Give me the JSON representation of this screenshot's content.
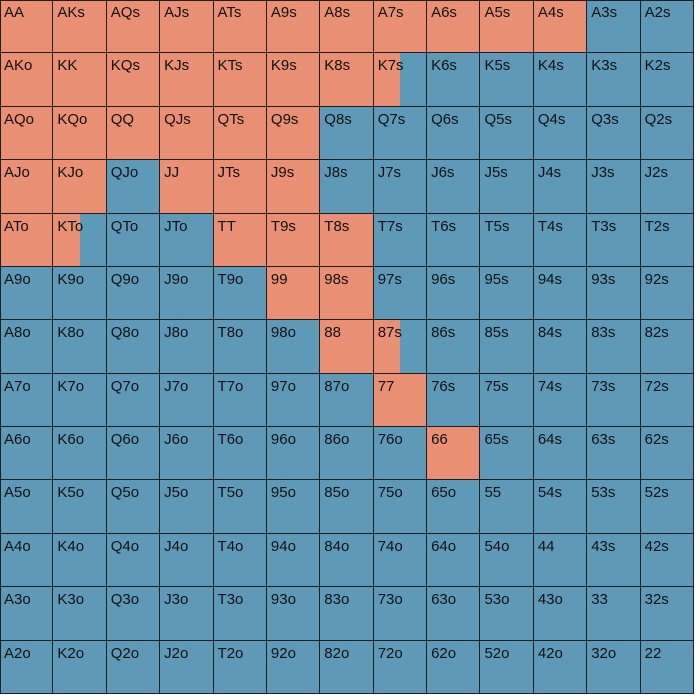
{
  "colors": {
    "raise": "#e88f74",
    "fold": "#5f99b8",
    "grid_line": "#1e1e1e",
    "text": "#111111"
  },
  "ranks": [
    "A",
    "K",
    "Q",
    "J",
    "T",
    "9",
    "8",
    "7",
    "6",
    "5",
    "4",
    "3",
    "2"
  ],
  "rows": [
    {
      "cells": [
        {
          "hand": "AA",
          "raise": 1
        },
        {
          "hand": "AKs",
          "raise": 1
        },
        {
          "hand": "AQs",
          "raise": 1
        },
        {
          "hand": "AJs",
          "raise": 1
        },
        {
          "hand": "ATs",
          "raise": 1
        },
        {
          "hand": "A9s",
          "raise": 1
        },
        {
          "hand": "A8s",
          "raise": 1
        },
        {
          "hand": "A7s",
          "raise": 1
        },
        {
          "hand": "A6s",
          "raise": 1
        },
        {
          "hand": "A5s",
          "raise": 1
        },
        {
          "hand": "A4s",
          "raise": 1
        },
        {
          "hand": "A3s",
          "raise": 0
        },
        {
          "hand": "A2s",
          "raise": 0
        }
      ]
    },
    {
      "cells": [
        {
          "hand": "AKo",
          "raise": 1
        },
        {
          "hand": "KK",
          "raise": 1
        },
        {
          "hand": "KQs",
          "raise": 1
        },
        {
          "hand": "KJs",
          "raise": 1
        },
        {
          "hand": "KTs",
          "raise": 1
        },
        {
          "hand": "K9s",
          "raise": 1
        },
        {
          "hand": "K8s",
          "raise": 1
        },
        {
          "hand": "K7s",
          "raise": 0.5
        },
        {
          "hand": "K6s",
          "raise": 0
        },
        {
          "hand": "K5s",
          "raise": 0
        },
        {
          "hand": "K4s",
          "raise": 0
        },
        {
          "hand": "K3s",
          "raise": 0
        },
        {
          "hand": "K2s",
          "raise": 0
        }
      ]
    },
    {
      "cells": [
        {
          "hand": "AQo",
          "raise": 1
        },
        {
          "hand": "KQo",
          "raise": 1
        },
        {
          "hand": "QQ",
          "raise": 1
        },
        {
          "hand": "QJs",
          "raise": 1
        },
        {
          "hand": "QTs",
          "raise": 1
        },
        {
          "hand": "Q9s",
          "raise": 1
        },
        {
          "hand": "Q8s",
          "raise": 0
        },
        {
          "hand": "Q7s",
          "raise": 0
        },
        {
          "hand": "Q6s",
          "raise": 0
        },
        {
          "hand": "Q5s",
          "raise": 0
        },
        {
          "hand": "Q4s",
          "raise": 0
        },
        {
          "hand": "Q3s",
          "raise": 0
        },
        {
          "hand": "Q2s",
          "raise": 0
        }
      ]
    },
    {
      "cells": [
        {
          "hand": "AJo",
          "raise": 1
        },
        {
          "hand": "KJo",
          "raise": 1
        },
        {
          "hand": "QJo",
          "raise": 0
        },
        {
          "hand": "JJ",
          "raise": 1
        },
        {
          "hand": "JTs",
          "raise": 1
        },
        {
          "hand": "J9s",
          "raise": 1
        },
        {
          "hand": "J8s",
          "raise": 0
        },
        {
          "hand": "J7s",
          "raise": 0
        },
        {
          "hand": "J6s",
          "raise": 0
        },
        {
          "hand": "J5s",
          "raise": 0
        },
        {
          "hand": "J4s",
          "raise": 0
        },
        {
          "hand": "J3s",
          "raise": 0
        },
        {
          "hand": "J2s",
          "raise": 0
        }
      ]
    },
    {
      "cells": [
        {
          "hand": "ATo",
          "raise": 1
        },
        {
          "hand": "KTo",
          "raise": 0.5
        },
        {
          "hand": "QTo",
          "raise": 0
        },
        {
          "hand": "JTo",
          "raise": 0
        },
        {
          "hand": "TT",
          "raise": 1
        },
        {
          "hand": "T9s",
          "raise": 1
        },
        {
          "hand": "T8s",
          "raise": 1
        },
        {
          "hand": "T7s",
          "raise": 0
        },
        {
          "hand": "T6s",
          "raise": 0
        },
        {
          "hand": "T5s",
          "raise": 0
        },
        {
          "hand": "T4s",
          "raise": 0
        },
        {
          "hand": "T3s",
          "raise": 0
        },
        {
          "hand": "T2s",
          "raise": 0
        }
      ]
    },
    {
      "cells": [
        {
          "hand": "A9o",
          "raise": 0
        },
        {
          "hand": "K9o",
          "raise": 0
        },
        {
          "hand": "Q9o",
          "raise": 0
        },
        {
          "hand": "J9o",
          "raise": 0
        },
        {
          "hand": "T9o",
          "raise": 0
        },
        {
          "hand": "99",
          "raise": 1
        },
        {
          "hand": "98s",
          "raise": 1
        },
        {
          "hand": "97s",
          "raise": 0
        },
        {
          "hand": "96s",
          "raise": 0
        },
        {
          "hand": "95s",
          "raise": 0
        },
        {
          "hand": "94s",
          "raise": 0
        },
        {
          "hand": "93s",
          "raise": 0
        },
        {
          "hand": "92s",
          "raise": 0
        }
      ]
    },
    {
      "cells": [
        {
          "hand": "A8o",
          "raise": 0
        },
        {
          "hand": "K8o",
          "raise": 0
        },
        {
          "hand": "Q8o",
          "raise": 0
        },
        {
          "hand": "J8o",
          "raise": 0
        },
        {
          "hand": "T8o",
          "raise": 0
        },
        {
          "hand": "98o",
          "raise": 0
        },
        {
          "hand": "88",
          "raise": 1
        },
        {
          "hand": "87s",
          "raise": 0.5
        },
        {
          "hand": "86s",
          "raise": 0
        },
        {
          "hand": "85s",
          "raise": 0
        },
        {
          "hand": "84s",
          "raise": 0
        },
        {
          "hand": "83s",
          "raise": 0
        },
        {
          "hand": "82s",
          "raise": 0
        }
      ]
    },
    {
      "cells": [
        {
          "hand": "A7o",
          "raise": 0
        },
        {
          "hand": "K7o",
          "raise": 0
        },
        {
          "hand": "Q7o",
          "raise": 0
        },
        {
          "hand": "J7o",
          "raise": 0
        },
        {
          "hand": "T7o",
          "raise": 0
        },
        {
          "hand": "97o",
          "raise": 0
        },
        {
          "hand": "87o",
          "raise": 0
        },
        {
          "hand": "77",
          "raise": 1
        },
        {
          "hand": "76s",
          "raise": 0
        },
        {
          "hand": "75s",
          "raise": 0
        },
        {
          "hand": "74s",
          "raise": 0
        },
        {
          "hand": "73s",
          "raise": 0
        },
        {
          "hand": "72s",
          "raise": 0
        }
      ]
    },
    {
      "cells": [
        {
          "hand": "A6o",
          "raise": 0
        },
        {
          "hand": "K6o",
          "raise": 0
        },
        {
          "hand": "Q6o",
          "raise": 0
        },
        {
          "hand": "J6o",
          "raise": 0
        },
        {
          "hand": "T6o",
          "raise": 0
        },
        {
          "hand": "96o",
          "raise": 0
        },
        {
          "hand": "86o",
          "raise": 0
        },
        {
          "hand": "76o",
          "raise": 0
        },
        {
          "hand": "66",
          "raise": 1
        },
        {
          "hand": "65s",
          "raise": 0
        },
        {
          "hand": "64s",
          "raise": 0
        },
        {
          "hand": "63s",
          "raise": 0
        },
        {
          "hand": "62s",
          "raise": 0
        }
      ]
    },
    {
      "cells": [
        {
          "hand": "A5o",
          "raise": 0
        },
        {
          "hand": "K5o",
          "raise": 0
        },
        {
          "hand": "Q5o",
          "raise": 0
        },
        {
          "hand": "J5o",
          "raise": 0
        },
        {
          "hand": "T5o",
          "raise": 0
        },
        {
          "hand": "95o",
          "raise": 0
        },
        {
          "hand": "85o",
          "raise": 0
        },
        {
          "hand": "75o",
          "raise": 0
        },
        {
          "hand": "65o",
          "raise": 0
        },
        {
          "hand": "55",
          "raise": 0
        },
        {
          "hand": "54s",
          "raise": 0
        },
        {
          "hand": "53s",
          "raise": 0
        },
        {
          "hand": "52s",
          "raise": 0
        }
      ]
    },
    {
      "cells": [
        {
          "hand": "A4o",
          "raise": 0
        },
        {
          "hand": "K4o",
          "raise": 0
        },
        {
          "hand": "Q4o",
          "raise": 0
        },
        {
          "hand": "J4o",
          "raise": 0
        },
        {
          "hand": "T4o",
          "raise": 0
        },
        {
          "hand": "94o",
          "raise": 0
        },
        {
          "hand": "84o",
          "raise": 0
        },
        {
          "hand": "74o",
          "raise": 0
        },
        {
          "hand": "64o",
          "raise": 0
        },
        {
          "hand": "54o",
          "raise": 0
        },
        {
          "hand": "44",
          "raise": 0
        },
        {
          "hand": "43s",
          "raise": 0
        },
        {
          "hand": "42s",
          "raise": 0
        }
      ]
    },
    {
      "cells": [
        {
          "hand": "A3o",
          "raise": 0
        },
        {
          "hand": "K3o",
          "raise": 0
        },
        {
          "hand": "Q3o",
          "raise": 0
        },
        {
          "hand": "J3o",
          "raise": 0
        },
        {
          "hand": "T3o",
          "raise": 0
        },
        {
          "hand": "93o",
          "raise": 0
        },
        {
          "hand": "83o",
          "raise": 0
        },
        {
          "hand": "73o",
          "raise": 0
        },
        {
          "hand": "63o",
          "raise": 0
        },
        {
          "hand": "53o",
          "raise": 0
        },
        {
          "hand": "43o",
          "raise": 0
        },
        {
          "hand": "33",
          "raise": 0
        },
        {
          "hand": "32s",
          "raise": 0
        }
      ]
    },
    {
      "cells": [
        {
          "hand": "A2o",
          "raise": 0
        },
        {
          "hand": "K2o",
          "raise": 0
        },
        {
          "hand": "Q2o",
          "raise": 0
        },
        {
          "hand": "J2o",
          "raise": 0
        },
        {
          "hand": "T2o",
          "raise": 0
        },
        {
          "hand": "92o",
          "raise": 0
        },
        {
          "hand": "82o",
          "raise": 0
        },
        {
          "hand": "72o",
          "raise": 0
        },
        {
          "hand": "62o",
          "raise": 0
        },
        {
          "hand": "52o",
          "raise": 0
        },
        {
          "hand": "42o",
          "raise": 0
        },
        {
          "hand": "32o",
          "raise": 0
        },
        {
          "hand": "22",
          "raise": 0
        }
      ]
    }
  ]
}
